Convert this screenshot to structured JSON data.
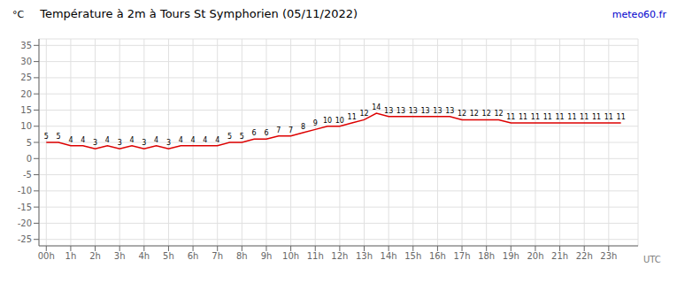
{
  "chart_data": {
    "type": "line",
    "title": "Température à 2m à Tours St Symphorien (05/11/2022)",
    "y_label": "°C",
    "x_label": "UTC",
    "annotations": [
      "meteo60.fr"
    ],
    "x": [
      0,
      0.5,
      1,
      1.5,
      2,
      2.5,
      3,
      3.5,
      4,
      4.5,
      5,
      5.5,
      6,
      6.5,
      7,
      7.5,
      8,
      8.5,
      9,
      9.5,
      10,
      10.5,
      11,
      11.5,
      12,
      12.5,
      13,
      13.5,
      14,
      14.5,
      15,
      15.5,
      16,
      16.5,
      17,
      17.5,
      18,
      18.5,
      19,
      19.5,
      20,
      20.5,
      21,
      21.5,
      22,
      22.5,
      23,
      23.5
    ],
    "values": [
      5,
      5,
      4,
      4,
      3,
      4,
      3,
      4,
      3,
      4,
      3,
      4,
      4,
      4,
      4,
      5,
      5,
      6,
      6,
      7,
      7,
      8,
      9,
      10,
      10,
      11,
      12,
      14,
      13,
      13,
      13,
      13,
      13,
      13,
      12,
      12,
      12,
      12,
      11,
      11,
      11,
      11,
      11,
      11,
      11,
      11,
      11,
      11
    ],
    "color": "#dd0000",
    "xlim": [
      -0.3,
      24.2
    ],
    "xticks": [
      {
        "value": 0,
        "label": "00h"
      },
      {
        "value": 1,
        "label": "1h"
      },
      {
        "value": 2,
        "label": "2h"
      },
      {
        "value": 3,
        "label": "3h"
      },
      {
        "value": 4,
        "label": "4h"
      },
      {
        "value": 5,
        "label": "5h"
      },
      {
        "value": 6,
        "label": "6h"
      },
      {
        "value": 7,
        "label": "7h"
      },
      {
        "value": 8,
        "label": "8h"
      },
      {
        "value": 9,
        "label": "9h"
      },
      {
        "value": 10,
        "label": "10h"
      },
      {
        "value": 11,
        "label": "11h"
      },
      {
        "value": 12,
        "label": "12h"
      },
      {
        "value": 13,
        "label": "13h"
      },
      {
        "value": 14,
        "label": "14h"
      },
      {
        "value": 15,
        "label": "15h"
      },
      {
        "value": 16,
        "label": "16h"
      },
      {
        "value": 17,
        "label": "17h"
      },
      {
        "value": 18,
        "label": "18h"
      },
      {
        "value": 19,
        "label": "19h"
      },
      {
        "value": 20,
        "label": "20h"
      },
      {
        "value": 21,
        "label": "21h"
      },
      {
        "value": 22,
        "label": "22h"
      },
      {
        "value": 23,
        "label": "23h"
      }
    ],
    "ylim": [
      -27,
      37
    ],
    "yticks": [
      -25,
      -20,
      -15,
      -10,
      -5,
      0,
      5,
      10,
      15,
      20,
      25,
      30,
      35
    ],
    "grid": true,
    "data_labels": true
  }
}
